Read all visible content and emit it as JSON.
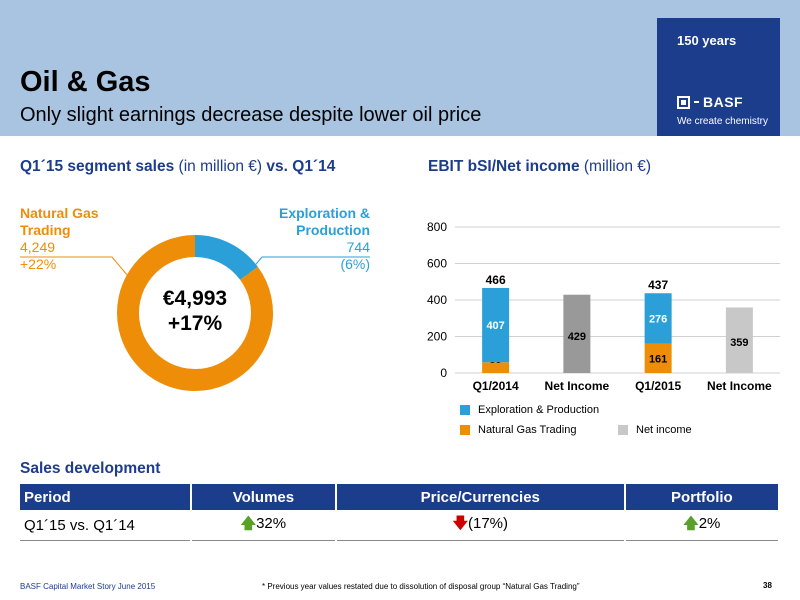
{
  "header": {
    "title": "Oil & Gas",
    "subtitle": "Only slight earnings decrease despite lower oil price",
    "years_badge": "150 years",
    "logo_text": "BASF",
    "tagline": "We create chemistry",
    "brand_color": "#1c3c8c",
    "band_color": "#a9c4e0"
  },
  "sales_section": {
    "title_bold": "Q1´15 segment sales",
    "title_normal": " (in million €) ",
    "title_bold2": "vs. Q1´14",
    "center_value": "€4,993",
    "center_change": "+17%",
    "ng_label": "Natural Gas Trading",
    "ng_value": "4,249",
    "ng_change": "+22%",
    "ep_label": "Exploration & Production",
    "ep_value": "744",
    "ep_change": "(6%)"
  },
  "ebit_section": {
    "title_bold": "EBIT bSI/Net income",
    "title_normal": " (million €)"
  },
  "chart_data": [
    {
      "type": "pie",
      "donut": true,
      "slices": [
        {
          "label": "Natural Gas Trading",
          "value": 4249,
          "color": "#ee8d08"
        },
        {
          "label": "Exploration & Production",
          "value": 744,
          "color": "#2a9fd8"
        }
      ]
    },
    {
      "type": "bar",
      "stacked": true,
      "categories": [
        "Q1/2014",
        "Net Income",
        "Q1/2015",
        "Net Income"
      ],
      "series": [
        {
          "name": "Natural Gas Trading",
          "color": "#ee8d08",
          "values": [
            59,
            null,
            161,
            null
          ]
        },
        {
          "name": "Exploration & Production",
          "color": "#2a9fd8",
          "values": [
            407,
            null,
            276,
            null
          ]
        },
        {
          "name": "Net income",
          "color": "#999999",
          "values": [
            null,
            429,
            null,
            null
          ]
        },
        {
          "name": "Net income",
          "color": "#c8c8c8",
          "values": [
            null,
            null,
            null,
            359
          ]
        }
      ],
      "totals": [
        "466",
        "",
        "437",
        ""
      ],
      "yticks": [
        0,
        200,
        400,
        600,
        800
      ],
      "ylim": [
        0,
        800
      ],
      "grid": true,
      "legend": [
        "Exploration & Production",
        "Natural Gas Trading",
        "Net income"
      ]
    }
  ],
  "sales_dev": {
    "title": "Sales development",
    "headers": [
      "Period",
      "Volumes",
      "Price/Currencies",
      "Portfolio"
    ],
    "row": {
      "period": "Q1´15 vs. Q1´14",
      "volumes": "32%",
      "price": "(17%)",
      "portfolio": "2%"
    }
  },
  "footer": {
    "left": "BASF Capital Market Story June 2015",
    "note": "* Previous year values restated due to dissolution of disposal group “Natural Gas Trading”",
    "page": "38"
  }
}
